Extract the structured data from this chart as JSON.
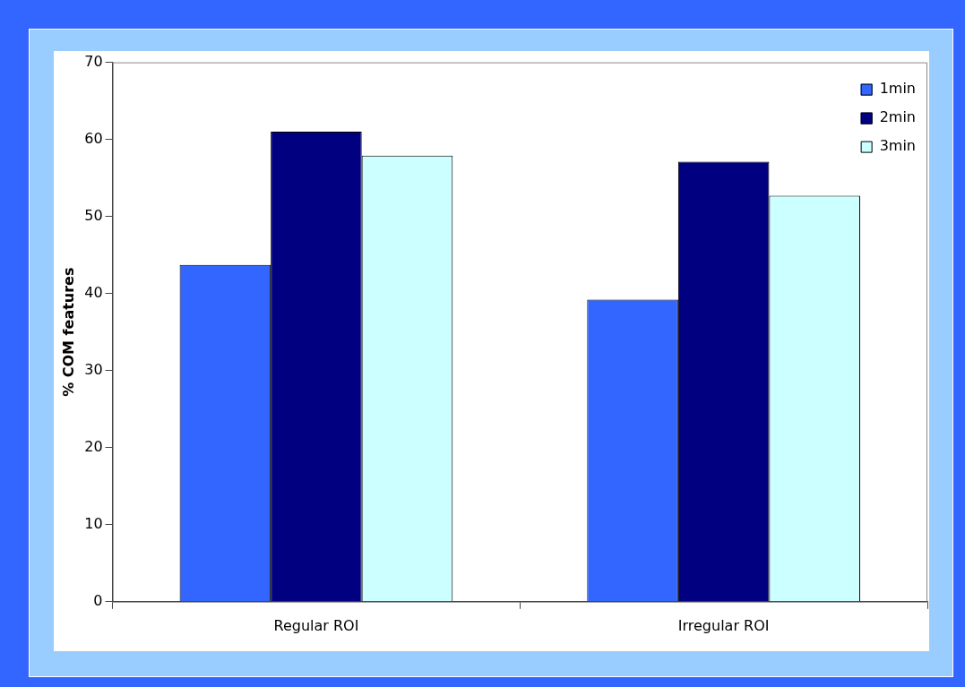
{
  "chart_data": {
    "type": "bar",
    "ylabel": "% COM features",
    "categories": [
      "Regular ROI",
      "Irregular ROI"
    ],
    "series": [
      {
        "name": "1min",
        "color": "#3366ff",
        "values": [
          43.7,
          39.2
        ]
      },
      {
        "name": "2min",
        "color": "#000080",
        "values": [
          61.0,
          57.1
        ]
      },
      {
        "name": "3min",
        "color": "#ccffff",
        "values": [
          57.9,
          52.7
        ]
      }
    ],
    "ylim": [
      0,
      70
    ],
    "yticks": [
      0,
      10,
      20,
      30,
      40,
      50,
      60,
      70
    ],
    "grid": false,
    "legend": "top right"
  }
}
